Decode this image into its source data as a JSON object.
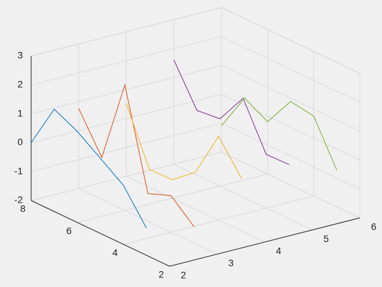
{
  "chart_data": {
    "type": "line3d",
    "y": [
      8,
      7,
      6,
      5,
      4,
      3
    ],
    "series": [
      {
        "color": "#0072bd",
        "x": 2,
        "values": [
          0,
          1.54,
          1.15,
          0.6,
          0.04,
          -1.06
        ]
      },
      {
        "color": "#d95319",
        "x": 3,
        "values": [
          0.77,
          -0.55,
          2.34,
          -1.04,
          -0.73,
          -1.43
        ]
      },
      {
        "color": "#edb120",
        "x": 4,
        "values": [
          0.52,
          -1.38,
          -1.36,
          -0.72,
          0.9,
          -0.18
        ]
      },
      {
        "color": "#7e2f8e",
        "x": 5,
        "values": [
          1.61,
          0.24,
          0.33,
          1.42,
          -0.14,
          -0.12
        ]
      },
      {
        "color": "#77ac30",
        "x": 6,
        "values": [
          -1.09,
          0.25,
          -0.19,
          0.89,
          0.76,
          -0.73
        ]
      }
    ],
    "xlim": [
      2,
      6
    ],
    "xticks": [
      2,
      3,
      4,
      5,
      6
    ],
    "ylim": [
      2,
      8
    ],
    "yticks": [
      2,
      4,
      6,
      8
    ],
    "zlim": [
      -2,
      3
    ],
    "zticks": [
      -2,
      -1,
      0,
      1,
      2,
      3
    ],
    "grid": true
  }
}
